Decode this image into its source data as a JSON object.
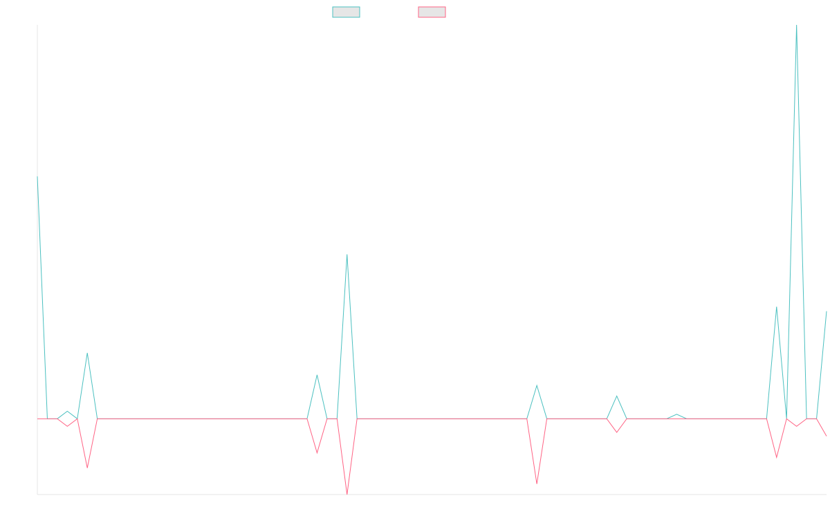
{
  "colors": {
    "series_a": "#4bc0c0",
    "series_b": "#ff6384",
    "legend_fill": "#e6e6e6",
    "axis": "#e6e6e6"
  },
  "chart_data": {
    "type": "line",
    "title": "",
    "xlabel": "",
    "ylabel": "",
    "grid": false,
    "legend_position": "top",
    "x_ticks_visible": false,
    "y_ticks_visible": false,
    "ylim": [
      -1.0,
      5.2
    ],
    "x": [
      0,
      1,
      2,
      3,
      4,
      5,
      6,
      7,
      8,
      9,
      10,
      11,
      12,
      13,
      14,
      15,
      16,
      17,
      18,
      19,
      20,
      21,
      22,
      23,
      24,
      25,
      26,
      27,
      28,
      29,
      30,
      31,
      32,
      33,
      34,
      35,
      36,
      37,
      38,
      39,
      40,
      41,
      42,
      43,
      44,
      45,
      46,
      47,
      48,
      49,
      50,
      51,
      52,
      53,
      54,
      55,
      56,
      57,
      58,
      59,
      60,
      61,
      62,
      63,
      64,
      65,
      66,
      67,
      68,
      69,
      70,
      71,
      72,
      73,
      74,
      75,
      76,
      77,
      78,
      79
    ],
    "series": [
      {
        "color": "#4bc0c0",
        "values": [
          3.2,
          0,
          0,
          0.1,
          0,
          0.87,
          0,
          0,
          0,
          0,
          0,
          0,
          0,
          0,
          0,
          0,
          0,
          0,
          0,
          0,
          0,
          0,
          0,
          0,
          0,
          0,
          0,
          0,
          0.58,
          0,
          0,
          2.17,
          0,
          0,
          0,
          0,
          0,
          0,
          0,
          0,
          0,
          0,
          0,
          0,
          0,
          0,
          0,
          0,
          0,
          0,
          0.44,
          0,
          0,
          0,
          0,
          0,
          0,
          0,
          0.3,
          0,
          0,
          0,
          0,
          0,
          0.06,
          0,
          0,
          0,
          0,
          0,
          0,
          0,
          0,
          0,
          1.48,
          0,
          5.2,
          0,
          0,
          1.42
        ]
      },
      {
        "color": "#ff6384",
        "values": [
          0,
          0,
          0,
          -0.1,
          0,
          -0.65,
          0,
          0,
          0,
          0,
          0,
          0,
          0,
          0,
          0,
          0,
          0,
          0,
          0,
          0,
          0,
          0,
          0,
          0,
          0,
          0,
          0,
          0,
          -0.45,
          0,
          0,
          -1.0,
          0,
          0,
          0,
          0,
          0,
          0,
          0,
          0,
          0,
          0,
          0,
          0,
          0,
          0,
          0,
          0,
          0,
          0,
          -0.86,
          0,
          0,
          0,
          0,
          0,
          0,
          0,
          -0.18,
          0,
          0,
          0,
          0,
          0,
          0,
          0,
          0,
          0,
          0,
          0,
          0,
          0,
          0,
          0,
          -0.51,
          0,
          -0.1,
          0,
          0,
          -0.23
        ]
      }
    ]
  }
}
